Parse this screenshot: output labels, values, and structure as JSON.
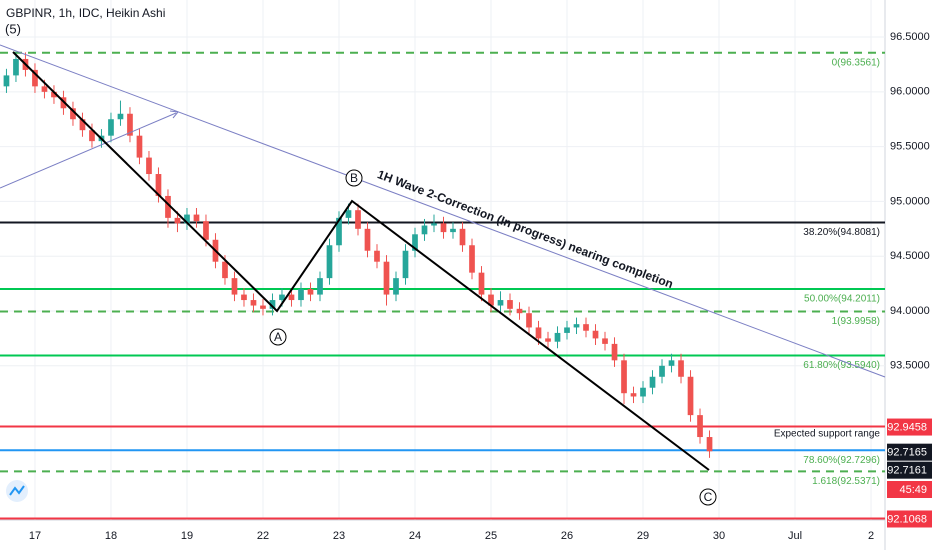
{
  "chart_data": {
    "type": "candlestick",
    "title": "GBPINR, 1h, IDC, Heikin Ashi",
    "x": [
      -3,
      -2,
      -1,
      0,
      1,
      2,
      3,
      4,
      5,
      6,
      7,
      8,
      9,
      10,
      11,
      12,
      13,
      14,
      15,
      16,
      17,
      18,
      19,
      20,
      21,
      22,
      23,
      24,
      25,
      26,
      27,
      28,
      29,
      30,
      31,
      32,
      33,
      34,
      35,
      36,
      37,
      38,
      39,
      40,
      41,
      42,
      43,
      44,
      45,
      46,
      47,
      48,
      49,
      50,
      51,
      52,
      53,
      54,
      55,
      56,
      57,
      58,
      59,
      60,
      61,
      62,
      63,
      64,
      65,
      66,
      67,
      68,
      69,
      70,
      71
    ],
    "open": [
      96.05,
      96.15,
      96.3,
      96.2,
      96.05,
      96.0,
      95.95,
      95.85,
      95.75,
      95.65,
      95.55,
      95.6,
      95.75,
      95.8,
      95.6,
      95.4,
      95.25,
      95.05,
      94.85,
      94.8,
      94.88,
      94.82,
      94.65,
      94.45,
      94.3,
      94.15,
      94.1,
      94.05,
      94.02,
      94.1,
      94.15,
      94.1,
      94.2,
      94.15,
      94.3,
      94.6,
      94.85,
      94.92,
      94.75,
      94.55,
      94.45,
      94.15,
      94.3,
      94.55,
      94.7,
      94.78,
      94.8,
      94.72,
      94.75,
      94.6,
      94.35,
      94.15,
      94.05,
      94.1,
      94.02,
      93.98,
      93.85,
      93.75,
      93.72,
      93.8,
      93.85,
      93.88,
      93.82,
      93.75,
      93.7,
      93.55,
      93.25,
      93.22,
      93.3,
      93.4,
      93.5,
      93.55,
      93.4,
      93.05,
      92.85
    ],
    "close": [
      96.15,
      96.3,
      96.2,
      96.05,
      96.0,
      95.95,
      95.85,
      95.75,
      95.65,
      95.55,
      95.6,
      95.75,
      95.8,
      95.6,
      95.4,
      95.25,
      95.05,
      94.85,
      94.8,
      94.88,
      94.82,
      94.65,
      94.45,
      94.3,
      94.15,
      94.1,
      94.05,
      94.02,
      94.1,
      94.15,
      94.1,
      94.2,
      94.15,
      94.3,
      94.6,
      94.85,
      94.92,
      94.75,
      94.55,
      94.45,
      94.15,
      94.3,
      94.55,
      94.7,
      94.78,
      94.8,
      94.72,
      94.75,
      94.6,
      94.35,
      94.15,
      94.05,
      94.1,
      94.02,
      93.98,
      93.85,
      93.75,
      93.72,
      93.8,
      93.85,
      93.88,
      93.82,
      93.75,
      93.7,
      93.55,
      93.25,
      93.22,
      93.3,
      93.4,
      93.5,
      93.55,
      93.4,
      93.05,
      92.85,
      92.72
    ],
    "high": [
      96.21,
      96.36,
      96.36,
      96.26,
      96.11,
      96.06,
      96.01,
      95.91,
      95.81,
      95.71,
      95.66,
      95.81,
      95.92,
      95.86,
      95.66,
      95.46,
      95.31,
      95.11,
      94.91,
      94.94,
      94.94,
      94.88,
      94.71,
      94.51,
      94.36,
      94.21,
      94.16,
      94.11,
      94.16,
      94.21,
      94.21,
      94.26,
      94.26,
      94.36,
      94.66,
      94.91,
      94.98,
      94.98,
      94.81,
      94.61,
      94.51,
      94.36,
      94.61,
      94.76,
      94.84,
      94.88,
      94.86,
      94.81,
      94.81,
      94.66,
      94.41,
      94.21,
      94.18,
      94.16,
      94.08,
      94.04,
      93.91,
      93.81,
      93.86,
      93.91,
      93.94,
      93.94,
      93.88,
      93.81,
      93.76,
      93.61,
      93.31,
      93.36,
      93.46,
      93.56,
      93.61,
      93.61,
      93.46,
      93.11,
      92.91
    ],
    "low": [
      95.99,
      96.09,
      96.14,
      95.99,
      95.94,
      95.89,
      95.79,
      95.69,
      95.59,
      95.49,
      95.49,
      95.54,
      95.69,
      95.54,
      95.34,
      95.19,
      94.99,
      94.76,
      94.72,
      94.74,
      94.76,
      94.59,
      94.39,
      94.24,
      94.09,
      94.04,
      93.99,
      93.96,
      93.96,
      94.04,
      94.04,
      94.04,
      94.09,
      94.09,
      94.24,
      94.54,
      94.79,
      94.69,
      94.49,
      94.39,
      94.05,
      94.09,
      94.24,
      94.49,
      94.64,
      94.72,
      94.66,
      94.66,
      94.54,
      94.29,
      94.09,
      93.99,
      93.99,
      93.96,
      93.92,
      93.79,
      93.69,
      93.66,
      93.66,
      93.74,
      93.79,
      93.76,
      93.69,
      93.64,
      93.49,
      93.15,
      93.16,
      93.16,
      93.24,
      93.34,
      93.44,
      93.34,
      92.99,
      92.79,
      92.66
    ],
    "up_color": "#26a69a",
    "down_color": "#ef5350",
    "xlim": [
      -3.68,
      89.47
    ],
    "xticks": [
      {
        "value": 0,
        "label": "17"
      },
      {
        "value": 8,
        "label": "18"
      },
      {
        "value": 16,
        "label": "19"
      },
      {
        "value": 24,
        "label": "22"
      },
      {
        "value": 32,
        "label": "23"
      },
      {
        "value": 40,
        "label": "24"
      },
      {
        "value": 48,
        "label": "25"
      },
      {
        "value": 56,
        "label": "26"
      },
      {
        "value": 64,
        "label": "29"
      },
      {
        "value": 72,
        "label": "30"
      },
      {
        "value": 80,
        "label": "Jul"
      },
      {
        "value": 88,
        "label": "2"
      }
    ],
    "ylim": [
      92.093,
      96.838
    ],
    "yticks": [
      {
        "value": 93.5,
        "label": "93.5000"
      },
      {
        "value": 94,
        "label": "94.0000"
      },
      {
        "value": 94.5,
        "label": "94.5000"
      },
      {
        "value": 95,
        "label": "95.0000"
      },
      {
        "value": 95.5,
        "label": "95.5000"
      },
      {
        "value": 96,
        "label": "96.0000"
      },
      {
        "value": 96.5,
        "label": "96.5000"
      }
    ],
    "grid": true,
    "levels": [
      {
        "value": 96.3561,
        "label": "0(96.3561)",
        "color": "#4caf50",
        "style": "dashed"
      },
      {
        "value": 94.8081,
        "label": "38.20%(94.8081)",
        "color": "#131722",
        "style": "solid"
      },
      {
        "value": 94.2011,
        "label": "50.00%(94.2011)",
        "color": "#00c853",
        "style": "solid"
      },
      {
        "value": 93.9958,
        "label": "1(93.9958)",
        "color": "#4caf50",
        "style": "dashed"
      },
      {
        "value": 93.594,
        "label": "61.80%(93.5940)",
        "color": "#00c853",
        "style": "solid"
      },
      {
        "value": 92.7296,
        "label": "78.60%(92.7296)",
        "color": "#2196f3",
        "style": "solid"
      },
      {
        "value": 92.5371,
        "label": "1.618(92.5371)",
        "color": "#4caf50",
        "style": "dashed"
      }
    ],
    "price_labels": [
      {
        "value": 92.9458,
        "label": "92.9458",
        "color": "#f23645"
      },
      {
        "value": 92.7165,
        "label": "92.7165",
        "color": "#131722"
      },
      {
        "value": 92.7161,
        "label": "92.7161",
        "color": "#131722"
      },
      {
        "value": 92.1068,
        "label": "92.1068",
        "color": "#f23645"
      }
    ],
    "countdown": "45:49",
    "annotations": {
      "wave5": "(5)",
      "a": "A",
      "b": "B",
      "c": "C",
      "trend": "1H Wave 2-Correction (In progress) nearing completion",
      "support": "Expected support range"
    }
  }
}
